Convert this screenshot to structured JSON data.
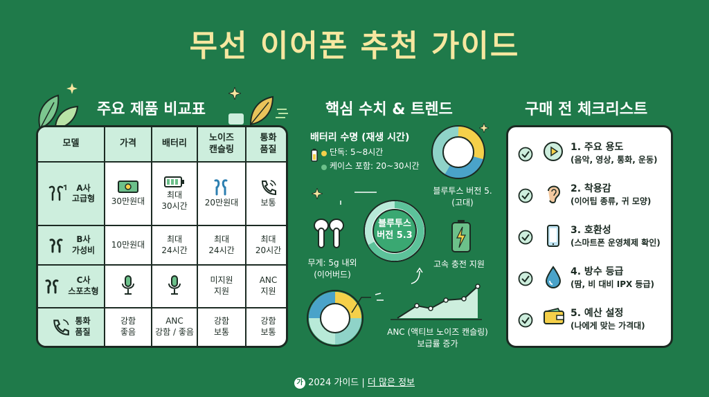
{
  "title": "무선 이어폰 추천 가이드",
  "sections": {
    "compare": "주요 제품 비교표",
    "stats": "핵심 수치 & 트렌드",
    "checklist": "구매 전 체크리스트"
  },
  "table": {
    "headers": [
      "모델",
      "가격",
      "배터리",
      "노이즈\n캔슬링",
      "통화\n품질"
    ],
    "rows": [
      {
        "model": "A사\n고급형",
        "price": "30만원대",
        "battery": "최대\n30시간",
        "anc": "20만원대",
        "call": "보통"
      },
      {
        "model": "B사\n가성비",
        "price": "10만원대",
        "battery": "최대\n24시간",
        "anc": "최대\n24시간",
        "call": "최대\n20시간"
      },
      {
        "model": "C사\n스포츠형",
        "price": "",
        "battery": "",
        "anc": "미지원\n지원",
        "call": "ANC\n지원"
      },
      {
        "model": "통화\n품질",
        "price": "강함\n좋음",
        "battery": "ANC\n강함 / 좋음",
        "anc": "강함\n보통",
        "call": "강함\n보통"
      }
    ]
  },
  "stats": {
    "battery_title": "배터리 수명 (재생 시간)",
    "battery_single": "단독: 5~8시간",
    "battery_case": "케이스 포함: 20~30시간",
    "bt_small_label": "블루투스 버전 5.\n(고대)",
    "bt_center_label": "블루투스\n버전 5.3",
    "weight_label": "무게: 5g 내외\n(이어버드)",
    "charge_label": "고속 충전 지원",
    "anc_label": "ANC (액티브 노이즈 캔슬링)\n보급률 증가"
  },
  "checklist": [
    {
      "title": "1. 주요 용도",
      "desc": "(음악, 영상, 통화, 운동)",
      "icon": "play-icon"
    },
    {
      "title": "2. 착용감",
      "desc": "(이어팁 종류, 귀 모양)",
      "icon": "ear-icon"
    },
    {
      "title": "3. 호환성",
      "desc": "(스마트폰 운영체제 확인)",
      "icon": "phone-icon"
    },
    {
      "title": "4. 방수 등급",
      "desc": "(땀, 비 대비 IPX 등급)",
      "icon": "water-drop-icon"
    },
    {
      "title": "5. 예산 설정",
      "desc": "(나에게 맞는 가격대)",
      "icon": "wallet-icon"
    }
  ],
  "footer": {
    "logo": "가",
    "text": "2024 가이드",
    "link": "더 많은 정보"
  },
  "colors": {
    "background": "#1f7a4a",
    "title": "#f6e7a0",
    "mint": "#cdeedd",
    "yellow": "#f5d04a",
    "blue": "#4aa3c9"
  }
}
